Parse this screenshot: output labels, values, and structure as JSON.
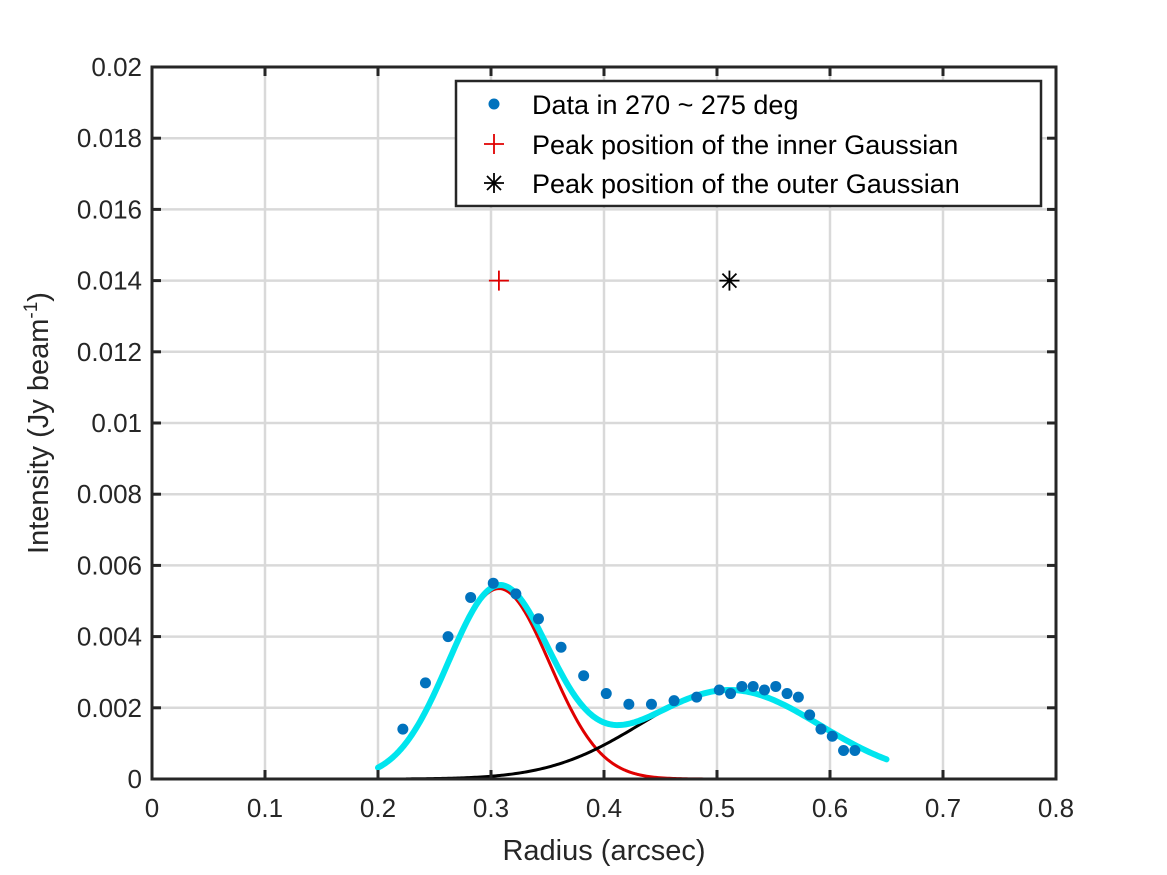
{
  "chart_data": {
    "type": "scatter",
    "xlabel": "Radius (arcsec)",
    "ylabel_main": "Intensity (Jy beam",
    "ylabel_sup": "-1",
    "ylabel_close": ")",
    "xlim": [
      0,
      0.8
    ],
    "ylim": [
      0,
      0.02
    ],
    "xticks": [
      0,
      0.1,
      0.2,
      0.3,
      0.4,
      0.5,
      0.6,
      0.7,
      0.8
    ],
    "xtick_labels": [
      "0",
      "0.1",
      "0.2",
      "0.3",
      "0.4",
      "0.5",
      "0.6",
      "0.7",
      "0.8"
    ],
    "yticks": [
      0,
      0.002,
      0.004,
      0.006,
      0.008,
      0.01,
      0.012,
      0.014,
      0.016,
      0.018,
      0.02
    ],
    "ytick_labels": [
      "0",
      "0.002",
      "0.004",
      "0.006",
      "0.008",
      "0.01",
      "0.012",
      "0.014",
      "0.016",
      "0.018",
      "0.02"
    ],
    "grid": true,
    "legend_position": "top-right",
    "series": [
      {
        "name": "Data in 270 ~ 275 deg",
        "kind": "points",
        "color": "#0072BD",
        "x": [
          0.222,
          0.242,
          0.262,
          0.282,
          0.302,
          0.322,
          0.342,
          0.362,
          0.382,
          0.402,
          0.422,
          0.442,
          0.462,
          0.482,
          0.502,
          0.512,
          0.522,
          0.532,
          0.542,
          0.552,
          0.562,
          0.572,
          0.582,
          0.592,
          0.602,
          0.612,
          0.622
        ],
        "y": [
          0.0014,
          0.0027,
          0.004,
          0.0051,
          0.0055,
          0.0052,
          0.0045,
          0.0037,
          0.0029,
          0.0024,
          0.0021,
          0.0021,
          0.0022,
          0.0023,
          0.0025,
          0.0024,
          0.0026,
          0.0026,
          0.0025,
          0.0026,
          0.0024,
          0.0023,
          0.0018,
          0.0014,
          0.0012,
          0.0008,
          0.0008
        ]
      },
      {
        "name": "Peak position of the inner Gaussian",
        "kind": "plus",
        "color": "#E00000",
        "x": [
          0.307
        ],
        "y": [
          0.014
        ]
      },
      {
        "name": "Peak position of the outer Gaussian",
        "kind": "asterisk",
        "color": "#000000",
        "x": [
          0.511
        ],
        "y": [
          0.014
        ]
      }
    ],
    "fits": {
      "inner": {
        "amp": 0.00535,
        "center": 0.307,
        "sigma": 0.045,
        "x_range": [
          0.225,
          0.63
        ],
        "color": "#E00000"
      },
      "outer": {
        "amp": 0.0025,
        "center": 0.511,
        "sigma": 0.08,
        "x_range": [
          0.225,
          0.63
        ],
        "color": "#000000"
      },
      "total": {
        "x_range": [
          0.2,
          0.65
        ],
        "color": "#00E5EE"
      }
    }
  }
}
